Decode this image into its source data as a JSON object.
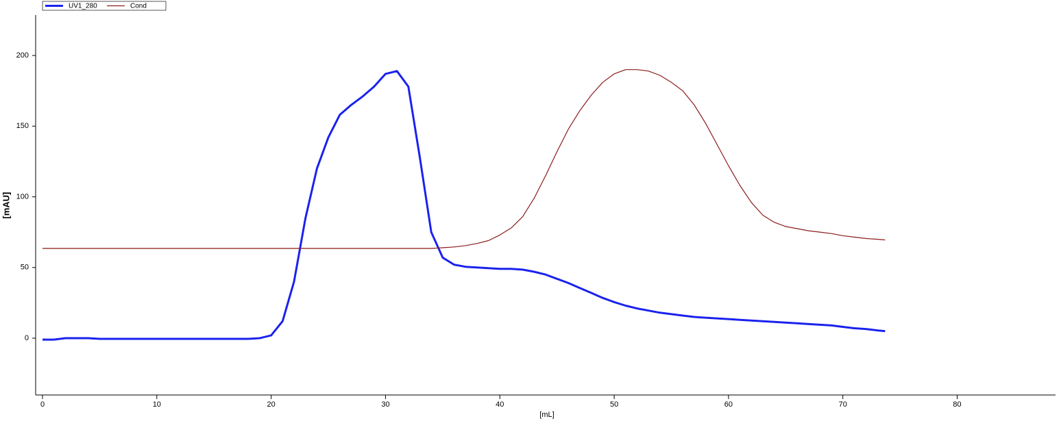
{
  "chart_data": {
    "type": "line",
    "x_label": "[mL]",
    "y_label": "[mAU]",
    "x": [
      0,
      1,
      2,
      3,
      4,
      5,
      6,
      7,
      8,
      9,
      10,
      11,
      12,
      13,
      14,
      15,
      16,
      17,
      18,
      19,
      20,
      21,
      22,
      23,
      24,
      25,
      26,
      27,
      28,
      29,
      30,
      31,
      32,
      33,
      34,
      35,
      36,
      37,
      38,
      39,
      40,
      41,
      42,
      43,
      44,
      45,
      46,
      47,
      48,
      49,
      50,
      51,
      52,
      53,
      54,
      55,
      56,
      57,
      58,
      59,
      60,
      61,
      62,
      63,
      64,
      65,
      66,
      67,
      68,
      69,
      70,
      71,
      72,
      73,
      73.7
    ],
    "series": [
      {
        "name": "UV1_280",
        "color": "#1a22ee",
        "values": [
          -1,
          -1,
          0,
          0,
          0,
          -0.5,
          -0.5,
          -0.5,
          -0.5,
          -0.5,
          -0.5,
          -0.5,
          -0.5,
          -0.5,
          -0.5,
          -0.5,
          -0.5,
          -0.5,
          -0.5,
          0,
          2,
          12,
          40,
          85,
          120,
          142,
          158,
          165,
          171,
          178,
          187,
          189,
          178,
          128,
          75,
          57,
          52,
          50.5,
          50,
          49.5,
          49,
          49,
          48.5,
          47,
          45,
          42,
          39,
          35.5,
          32,
          28.5,
          25.5,
          23,
          21,
          19.5,
          18,
          17,
          16,
          15,
          14.5,
          14,
          13.5,
          13,
          12.5,
          12,
          11.5,
          11,
          10.5,
          10,
          9.5,
          9,
          8,
          7,
          6.5,
          5.5,
          5
        ]
      },
      {
        "name": "Cond",
        "color": "#8b1a1a",
        "values": [
          63.5,
          63.5,
          63.5,
          63.5,
          63.5,
          63.5,
          63.5,
          63.5,
          63.5,
          63.5,
          63.5,
          63.5,
          63.5,
          63.5,
          63.5,
          63.5,
          63.5,
          63.5,
          63.5,
          63.5,
          63.5,
          63.5,
          63.5,
          63.5,
          63.5,
          63.5,
          63.5,
          63.5,
          63.5,
          63.5,
          63.5,
          63.5,
          63.5,
          63.5,
          63.5,
          64,
          64.5,
          65.5,
          67,
          69,
          73,
          78,
          86,
          99,
          115,
          132,
          148,
          161,
          172,
          181,
          187,
          190,
          190,
          189,
          186,
          181,
          175,
          165,
          152,
          137,
          122,
          108,
          96,
          87,
          82,
          79,
          77.5,
          76,
          75,
          74,
          72.5,
          71.5,
          70.5,
          70,
          69.5
        ]
      }
    ],
    "xlim": [
      -0.6,
      88.6
    ],
    "ylim": [
      -40.2,
      228.6
    ],
    "xticks": [
      0,
      10,
      20,
      30,
      40,
      50,
      60,
      70,
      80
    ],
    "yticks": [
      0,
      50,
      100,
      150,
      200
    ]
  }
}
